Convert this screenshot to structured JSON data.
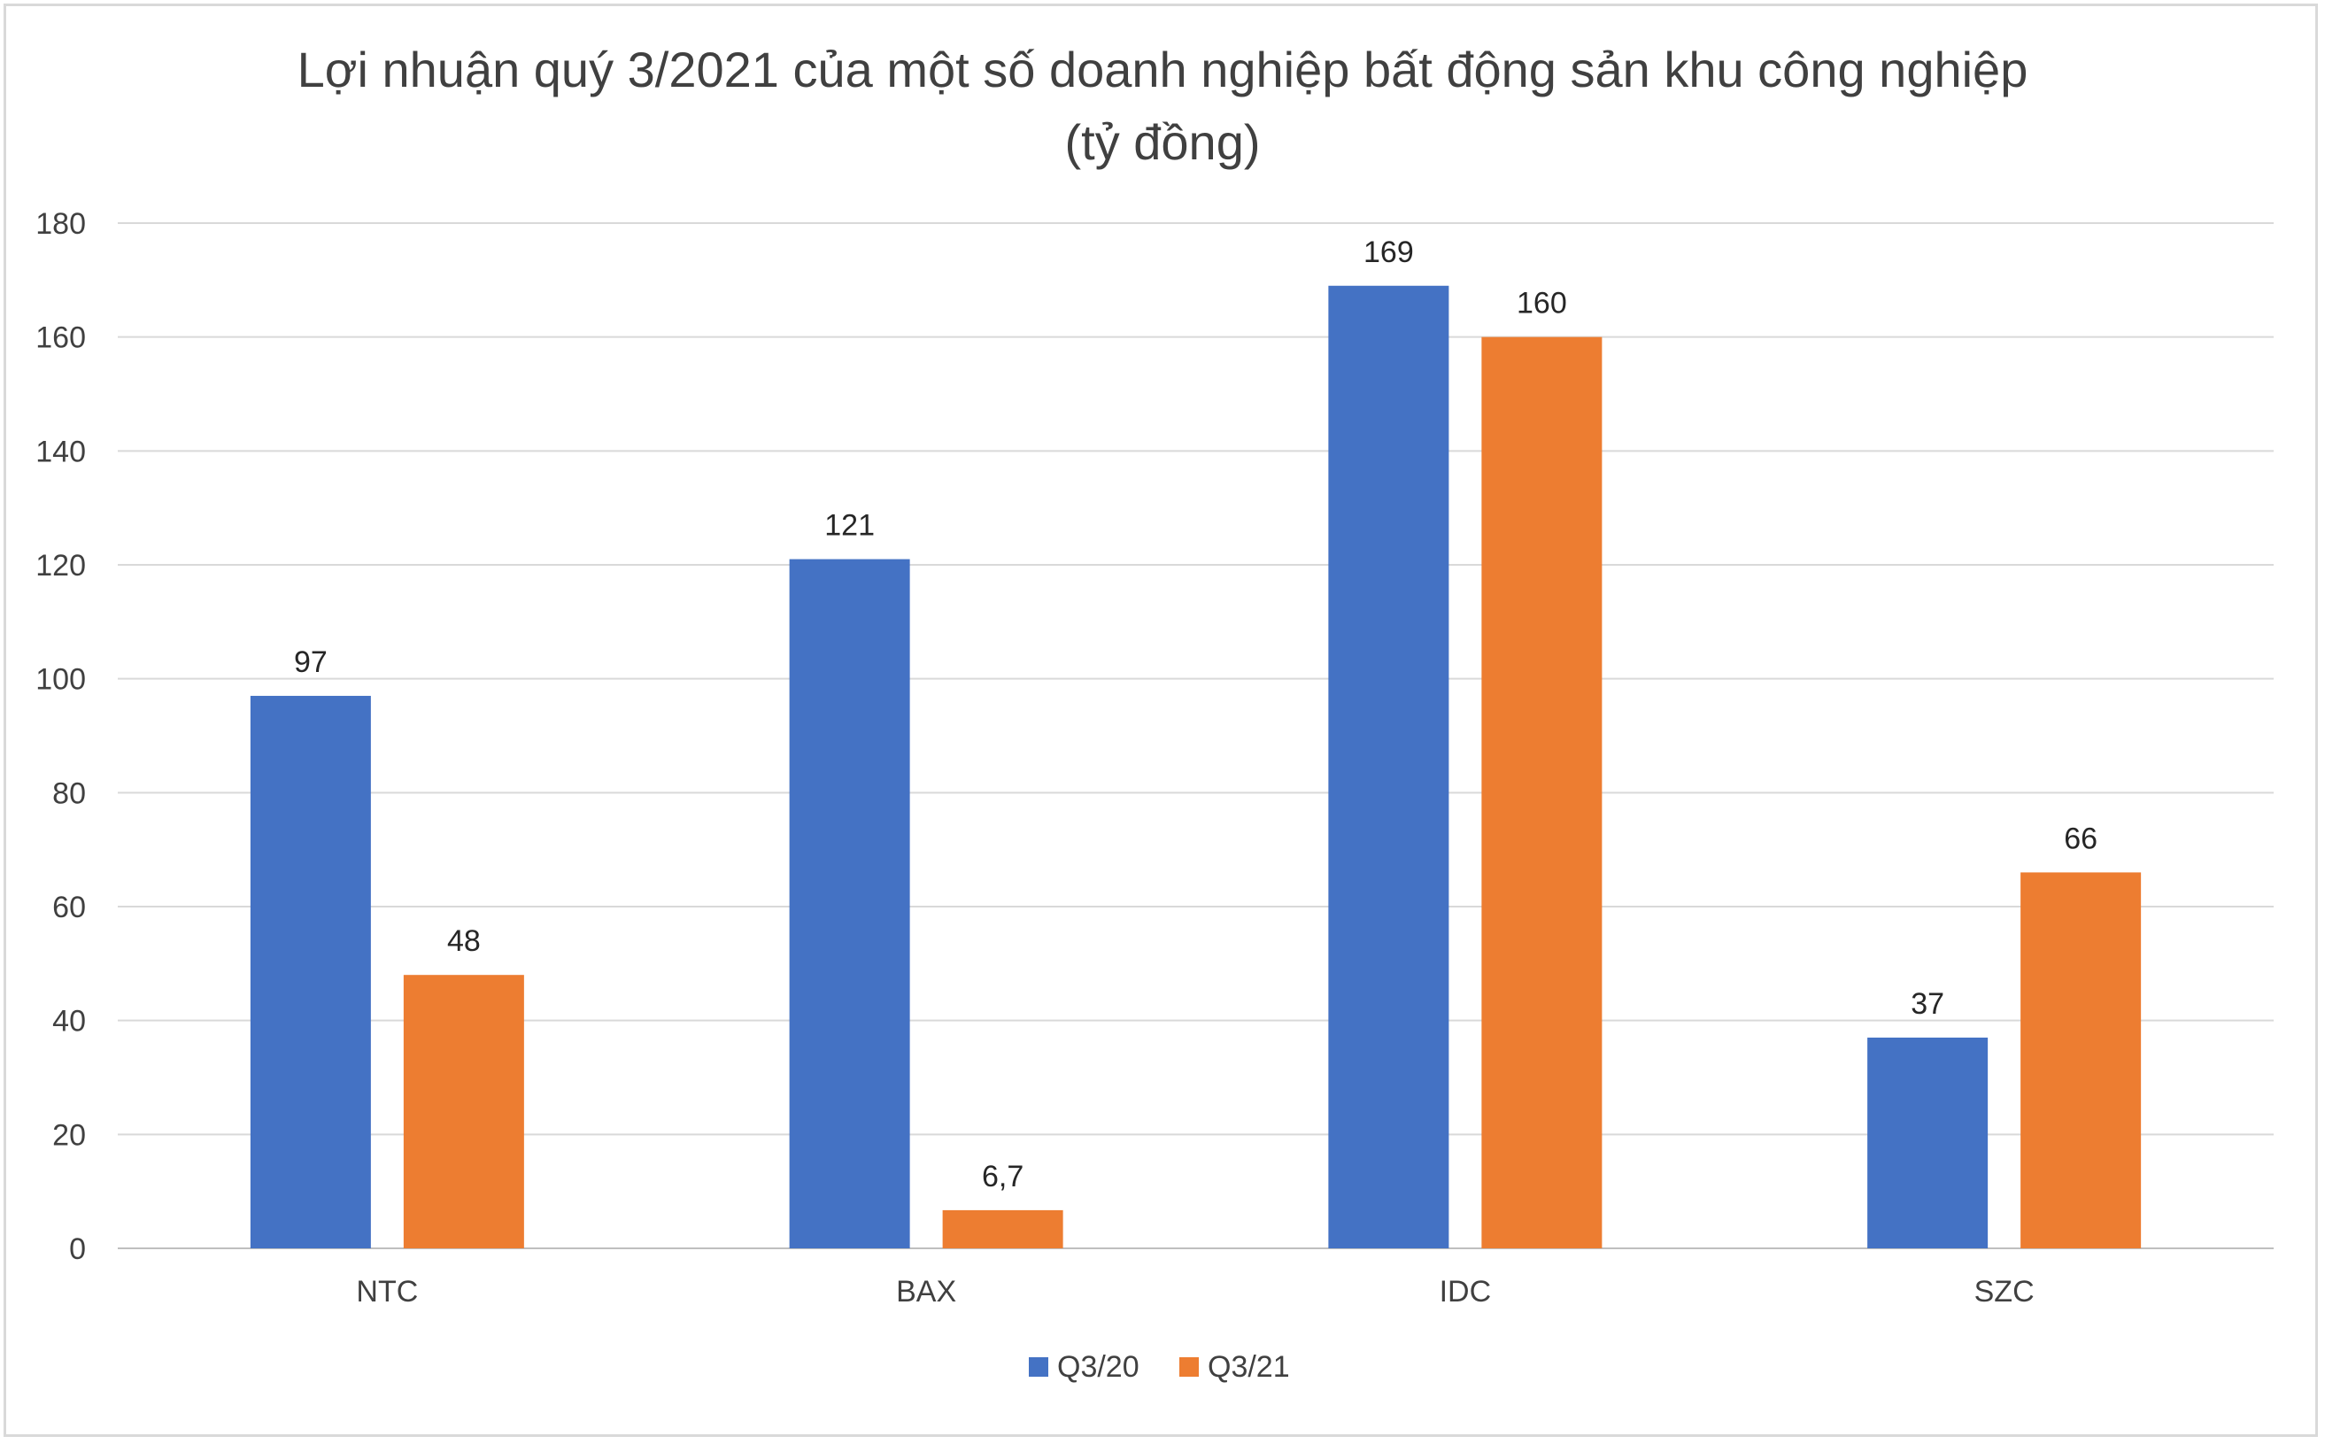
{
  "chart_data": {
    "type": "bar",
    "title": "Lợi nhuận quý 3/2021 của một số doanh nghiệp bất động sản khu công nghiệp",
    "subtitle": "(tỷ đồng)",
    "categories": [
      "NTC",
      "BAX",
      "IDC",
      "SZC"
    ],
    "series": [
      {
        "name": "Q3/20",
        "color": "#4472c4",
        "values": [
          97,
          121,
          169,
          37
        ],
        "labels": [
          "97",
          "121",
          "169",
          "37"
        ]
      },
      {
        "name": "Q3/21",
        "color": "#ed7d31",
        "values": [
          48,
          6.7,
          160,
          66
        ],
        "labels": [
          "48",
          "6,7",
          "160",
          "66"
        ]
      }
    ],
    "ylim": [
      0,
      180
    ],
    "yticks": [
      0,
      20,
      40,
      60,
      80,
      100,
      120,
      140,
      160,
      180
    ],
    "xlabel": "",
    "ylabel": "",
    "grid": true,
    "legend": "bottom"
  }
}
